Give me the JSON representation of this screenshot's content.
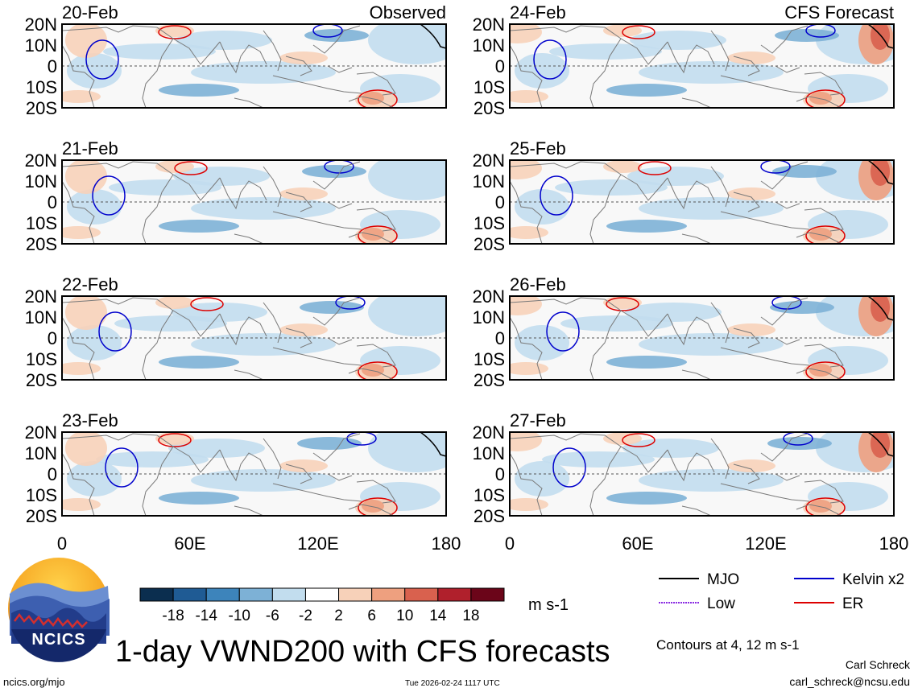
{
  "chart_data": {
    "type": "heatmap",
    "title": "1-day VWND200 with CFS forecasts",
    "units": "m s-1",
    "contour_note": "Contours at 4, 12 m s-1",
    "x_ticks": [
      "0",
      "60E",
      "120E",
      "180"
    ],
    "y_ticks": [
      "20N",
      "10N",
      "0",
      "10S",
      "20S"
    ],
    "xlim_deg_e": [
      0,
      180
    ],
    "ylim_deg": [
      -20,
      20
    ],
    "colorbar": {
      "labels": [
        "-18",
        "-14",
        "-10",
        "-6",
        "-2",
        "2",
        "6",
        "10",
        "14",
        "18"
      ],
      "colors": [
        "#0b2e4f",
        "#1f5b94",
        "#3d84bb",
        "#7db1d6",
        "#c2ddee",
        "#ffffff",
        "#f7d1b9",
        "#eea07f",
        "#d9614e",
        "#b0202c",
        "#6b0519"
      ]
    },
    "legend": [
      {
        "label": "MJO",
        "color": "#000000"
      },
      {
        "label": "Kelvin x2",
        "color": "#0000cc"
      },
      {
        "label": "Low",
        "color": "#8a2be2"
      },
      {
        "label": "ER",
        "color": "#dd0000"
      }
    ],
    "panels": [
      {
        "date": "20-Feb",
        "tag": "Observed",
        "column": "left"
      },
      {
        "date": "21-Feb",
        "tag": "",
        "column": "left"
      },
      {
        "date": "22-Feb",
        "tag": "",
        "column": "left"
      },
      {
        "date": "23-Feb",
        "tag": "",
        "column": "left"
      },
      {
        "date": "24-Feb",
        "tag": "CFS Forecast",
        "column": "right"
      },
      {
        "date": "25-Feb",
        "tag": "",
        "column": "right"
      },
      {
        "date": "26-Feb",
        "tag": "",
        "column": "right"
      },
      {
        "date": "27-Feb",
        "tag": "",
        "column": "right"
      }
    ]
  },
  "logo": {
    "text": "NCICS"
  },
  "footer": {
    "url": "ncics.org/mjo",
    "timestamp": "Tue 2026-02-24 1117 UTC",
    "author": "Carl Schreck",
    "email": "carl_schreck@ncsu.edu"
  }
}
